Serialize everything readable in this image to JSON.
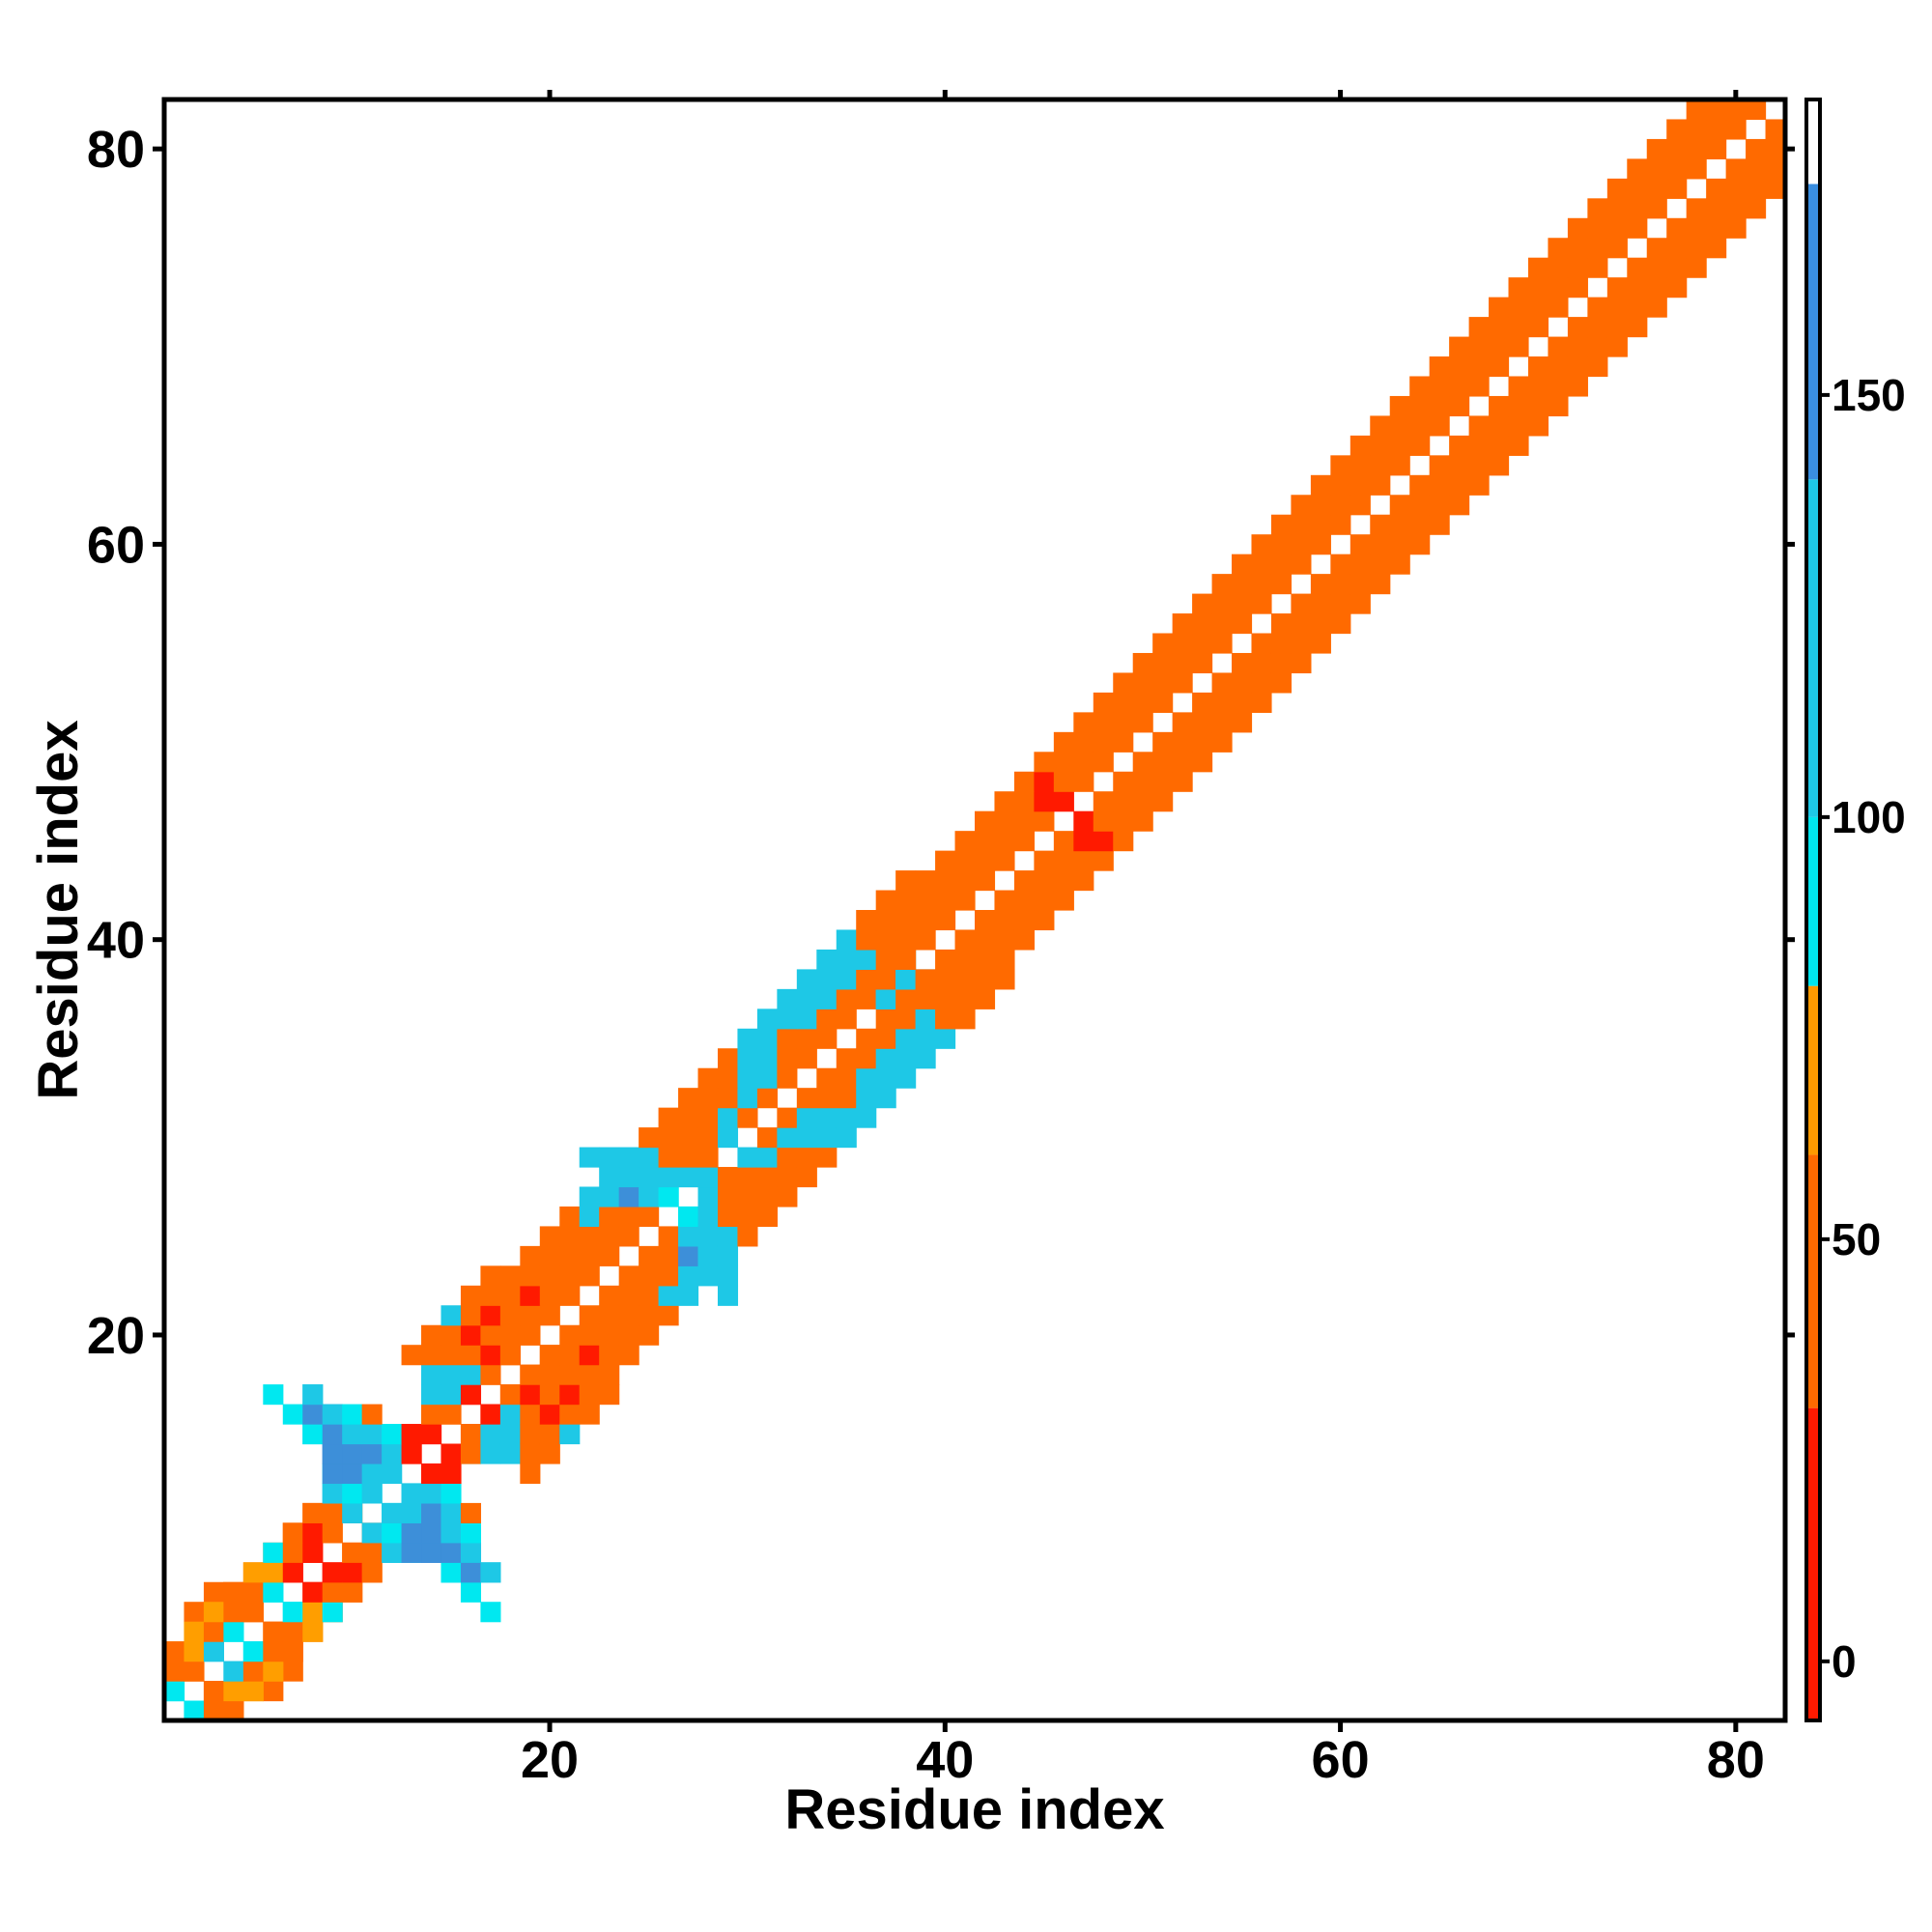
{
  "chart_data": {
    "type": "heatmap",
    "title": "",
    "xlabel": "Residue index",
    "ylabel": "Residue index",
    "xlim": [
      0.5,
      82.5
    ],
    "ylim": [
      0.5,
      82.5
    ],
    "x_ticks": [
      20,
      40,
      60,
      80
    ],
    "y_ticks": [
      20,
      40,
      60,
      80
    ],
    "colorbar": {
      "range": [
        -7,
        185
      ],
      "ticks": [
        0,
        50,
        100,
        150
      ],
      "segments": [
        {
          "from": -7,
          "to": 30,
          "color": "#ff1a00"
        },
        {
          "from": 30,
          "to": 60,
          "color": "#ff6a00"
        },
        {
          "from": 60,
          "to": 80,
          "color": "#ff9a00"
        },
        {
          "from": 80,
          "to": 100,
          "color": "#00e5ee"
        },
        {
          "from": 100,
          "to": 140,
          "color": "#1ec8e6"
        },
        {
          "from": 140,
          "to": 175,
          "color": "#3a8ee0"
        },
        {
          "from": 175,
          "to": 185,
          "color": "#ffffff"
        }
      ]
    },
    "color_classes": {
      "r": "#ff1a00",
      "o": "#ff6a00",
      "y": "#ff9e00",
      "c": "#00e8f0",
      "s": "#1ec8e6",
      "b": "#3d8fd9"
    },
    "diagonal_band_pattern": {
      "note": "symmetric residue-residue map; cells read per row from the image",
      "cells_by_row": {
        "1": "2c 3y 4y",
        "2": "1c 3o 4o 5y 6o",
        "3": "1o 2o 4s 5o 6y 7o",
        "4": "1o 2y 3s 5c 6o 7o",
        "5": "2y 3o 4c 6o 7o 8o",
        "6": "3y 4o 5o 7c 8y 9o",
        "7": "4o 5o 6c 8r 9o 10o",
        "8": "5y 6y 7r 9r 10r 11o 15s 16b 17s",
        "9": "6c 7o 8r 10o 11o 12s 13c 14b 15b 16b",
        "10": "7o 8r 9o 11o 12s 13s 14b 15b",
        "11": "8o 9o 10s 12c 13s 14s",
        "12": "9s 10c 11s 13s 14o",
        "13": "9b 10b 11s 12s 14r 15o",
        "14": "9b 10b 11b 12s 13r 15r 16s",
        "15": "8c 9b 10s 11s 12c 13r 14r 16o 17s",
        "16": "7c 8b 9s 10c 11o 14o 15o 17r 18o",
        "17": "6c 8s 14s 15s 16r 18o 19r",
        "18": "14s 15s 16s 17o 19o 20o",
        "19": "13o 14o 15o 16o 17r 18o 20o",
        "20": "14o 15o 16r 17o 18o 19o",
        "21": "15s 16o 17r 18o 19o 20o",
        "22": "16o 17o 18o 19r 20o 21o",
        "23": "17o 18o 19o 20o 21o 22o",
        "24": "19o 20o 21o 22o 23o",
        "25": "20o 21o 22o 23o 24o",
        "26": "21o 22s 23o 24o 25o 27c",
        "27": "22s 23s 24b 25s 26c 28s",
        "28": "23s 24s 25s 26s 27s 28s",
        "29": "22s 23s 24s 25s 26o 27o 28o",
        "30": "25o 26o 27o 28o 29s",
        "31": "26o 27o 28o 29s 30o",
        "32": "27o 28o 29o 30s 31o",
        "33": "28o 29o 30s 31s 32o",
        "34": "29o 30s 31s 32o 33o",
        "35": "30s 31s 32o 33o 34o",
        "36": "31s 32s 33s 34o 35o",
        "37": "32s 33s 34s 35o 36o 37s 38s",
        "38": "33s 34s 35s 36o 37o 38s 39s",
        "39": "34s 35s 36s 37o 38o",
        "40": "35s 36o 37o 38o 39o",
        "41": "36o 37o 38o 39o 40o",
        "42": "37o 38o 39o 40o 41o",
        "43": "38o 39o 40o 41o 42o",
        "44": "40o 41o 42o 43o",
        "45": "41o 42o 43o 44o",
        "46": "42o 43o 44o 45o",
        "47": "43o 44o 45r 46r",
        "48": "44o 45r 46o 47o",
        "49": "45o 46o 47o 48o",
        "50": "46o 47o 48o 49o",
        "51": "47o 48o 49o 50o",
        "52": "48o 49o 50o 51o",
        "53": "49o 50o 51o 52o",
        "54": "50o 51o 52o 53o",
        "55": "51o 52o 53o 54o",
        "56": "52o 53o 54o 55o",
        "57": "53o 54o 55o 56o",
        "58": "54o 55o 56o 57o",
        "59": "55o 56o 57o 58o",
        "60": "56o 57o 58o 59o",
        "61": "57o 58o 59o 60o",
        "62": "58o 59o 60o 61o",
        "63": "59o 60o 61o 62o",
        "64": "60o 61o 62o 63o",
        "65": "61o 62o 63o 64o",
        "66": "62o 63o 64o 65o",
        "67": "63o 64o 65o 66o",
        "68": "64o 65o 66o 67o",
        "69": "65o 66o 67o 68o",
        "70": "66o 67o 68o 69o",
        "71": "67o 68o 69o 70o",
        "72": "68o 69o 70o 71o",
        "73": "69o 70o 71o 72o",
        "74": "70o 71o 72o 73o",
        "75": "71o 72o 73o 74o",
        "76": "72o 73o 74o 75o",
        "77": "73o 74o 75o 76o",
        "78": "74o 75o 76o 77o",
        "79": "75o 76o 77o 78o",
        "80": "76o 77o 78o 79o",
        "81": "77o 78o 79o 80o",
        "82": "78o 79o 80o 81o"
      }
    }
  }
}
